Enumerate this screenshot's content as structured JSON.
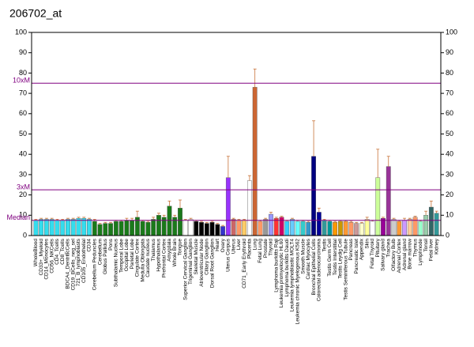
{
  "chart_data": {
    "type": "bar",
    "title": "206702_at",
    "categories": [
      "WholeBlood",
      "CD33+_Myeloid",
      "CD14_Monocytes",
      "CD56_NKCells",
      "CD4_Tcells",
      "CD8_Tcells",
      "BDCA4_DentriticCells",
      "CD19_BCells_neg_sel",
      "721_B_lymphoblasts",
      "CD105_Endothelial",
      "CD34",
      "Cerebellum Peduncles",
      "Cerebellum",
      "Globus Pallidus",
      "Pons",
      "Subthalamic Nucleus",
      "Temporal Lobe",
      "Occipital Lobe",
      "Parietal Lobe",
      "Cingulate Cortex",
      "Medulla Oblongata",
      "Caudate nucleus",
      "Thalamus",
      "Hypothalamus",
      "Prefrontal Cortex",
      "Amygdala",
      "Whole Brain",
      "Tongue",
      "Superior Cervical Ganglion",
      "Trigeminal Ganglion",
      "Skeletal Muscle",
      "Atrioventricular Node",
      "Ciliary Ganglion",
      "Dorsal Root Ganglion",
      "Heart",
      "Ovary",
      "Uterus Corpus",
      "Uterus",
      "Liver",
      "CD71_Early Erythroid",
      "Placenta",
      "Lung",
      "Fetal Lung",
      "Prostate",
      "Thyroid",
      "Lymphoma burkitts Raji",
      "Leukemia promyelocytic HL60",
      "Lymphoma burkitts Daudi",
      "Leukemia lymphoblastic MOLT4",
      "Leukemia chronic Myelogenous K562",
      "Smooth Muscle",
      "Cardiac Myocytes",
      "Bronchial Epithelial Cells",
      "Colorectal adenocarcinoma",
      "Testis",
      "Testis Germ Cell",
      "Testis Interstitial",
      "Testis Leydig Cell",
      "Testis Seminiferous Tubule",
      "Pancreas",
      "Pancreatic Islet",
      "Appendix",
      "Skin",
      "Fetal Thyroid",
      "Pituitary",
      "Salivary gland",
      "Trachea",
      "Olfactory Bulb",
      "Adrenal Cortex",
      "Adrenal gland",
      "Bone marrow",
      "Thymus",
      "Lymphnode",
      "Tonsil",
      "Fetal liver",
      "Kidney"
    ],
    "values": [
      7.5,
      8,
      8,
      8,
      7.5,
      7.5,
      8,
      8,
      8.5,
      8.5,
      8,
      7,
      5.5,
      6,
      6,
      7,
      7,
      7.5,
      7.5,
      9,
      7,
      6.5,
      8,
      10,
      9,
      14.5,
      9,
      13.5,
      7.5,
      8,
      7,
      6.5,
      6,
      6.5,
      5.5,
      4.5,
      28.5,
      8,
      7.5,
      7.5,
      27,
      73,
      7,
      8,
      10.5,
      8.5,
      9,
      7,
      8,
      7,
      7,
      6.5,
      39,
      11.5,
      7.5,
      7,
      6.5,
      7,
      7,
      6.5,
      6,
      6,
      8,
      7,
      28.5,
      8.5,
      34,
      8,
      7,
      7.5,
      8,
      9,
      7,
      10,
      14,
      11
    ],
    "errors": [
      0.5,
      0.5,
      0.5,
      0.5,
      0.5,
      0.5,
      0.5,
      0.5,
      0.5,
      0.5,
      0.5,
      1,
      0.5,
      0.5,
      0.5,
      0.5,
      0.5,
      1,
      1,
      3,
      0.5,
      0.5,
      1,
      1,
      1,
      2.5,
      1,
      4,
      0.5,
      0.5,
      0.5,
      0.5,
      0.5,
      0.5,
      0.5,
      0.5,
      10.5,
      0.5,
      0.5,
      0.5,
      2.5,
      9,
      0.5,
      0.5,
      1,
      0.5,
      0.5,
      0.5,
      0.5,
      0.5,
      0.5,
      0.5,
      17.5,
      2,
      0.5,
      0.5,
      0.5,
      0.5,
      0.5,
      0.5,
      0.5,
      0.5,
      1,
      0.5,
      14,
      0.5,
      5,
      0.5,
      0.5,
      1,
      0.5,
      0.5,
      0.5,
      2,
      3,
      1
    ],
    "colors": [
      "#33ddee",
      "#33ddee",
      "#33ddee",
      "#33ddee",
      "#33ddee",
      "#33ddee",
      "#33ddee",
      "#33ddee",
      "#33ddee",
      "#33ddee",
      "#33ddee",
      "#1a7a1a",
      "#1a7a1a",
      "#1a7a1a",
      "#1a7a1a",
      "#1a7a1a",
      "#1a7a1a",
      "#1a7a1a",
      "#1a7a1a",
      "#1a7a1a",
      "#1a7a1a",
      "#1a7a1a",
      "#1a7a1a",
      "#1a7a1a",
      "#1a7a1a",
      "#1a7a1a",
      "#1a7a1a",
      "#1a7a1a",
      "#ffffff",
      "#ffffff",
      "#000000",
      "#000000",
      "#000000",
      "#000000",
      "#000000",
      "#3333cc",
      "#9933ff",
      "#cc6666",
      "#ff9966",
      "#ffcc66",
      "#ffffff",
      "#cc6633",
      "#ff9966",
      "#999999",
      "#9999ff",
      "#ff3333",
      "#cc0066",
      "#33ccff",
      "#66ccff",
      "#66ffff",
      "#33cccc",
      "#3399cc",
      "#000080",
      "#000099",
      "#339999",
      "#009999",
      "#ff9900",
      "#cc9900",
      "#ff9933",
      "#ff9966",
      "#cc9999",
      "#ffffcc",
      "#ffff99",
      "#ffffff",
      "#ccff99",
      "#990099",
      "#993399",
      "#cccccc",
      "#ff9933",
      "#cc99ff",
      "#ffcc99",
      "#ff9966",
      "#99ffcc",
      "#99ccaa",
      "#336666",
      "#339999"
    ],
    "reference_lines": [
      {
        "label": "10xM",
        "value": 75
      },
      {
        "label": "3xM",
        "value": 22.5
      },
      {
        "label": "Median",
        "value": 7.5
      }
    ],
    "ylim": [
      0,
      100
    ],
    "yticks": [
      0,
      10,
      20,
      30,
      40,
      50,
      60,
      70,
      80,
      90,
      100
    ],
    "y2lim": [
      0,
      100
    ],
    "y2ticks": [
      0,
      10,
      20,
      30,
      40,
      50,
      60,
      70,
      80,
      90,
      100
    ]
  }
}
